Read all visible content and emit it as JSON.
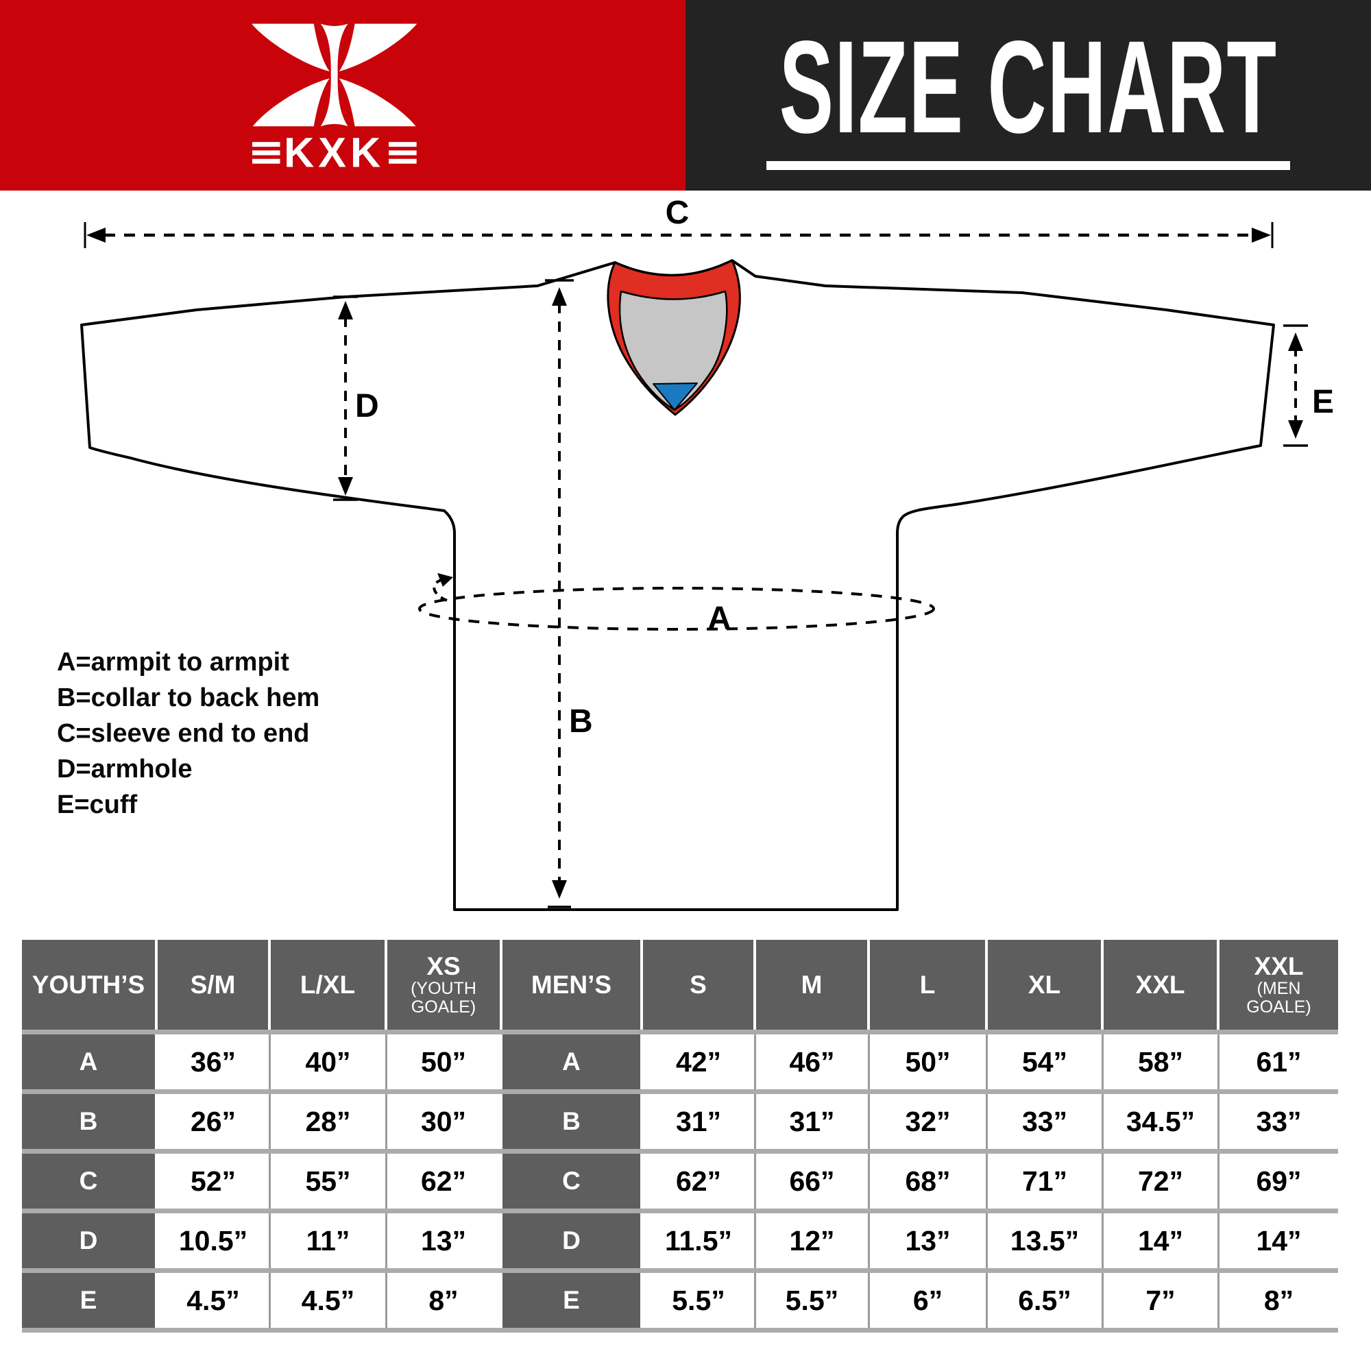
{
  "header": {
    "logo": {
      "brand": "KXK",
      "bars": "≡"
    },
    "title": "SIZE CHART",
    "colors": {
      "banner_red": "#C8040A",
      "banner_dark": "#232323",
      "text": "#ffffff"
    }
  },
  "diagram": {
    "dimension_labels": {
      "A": "A",
      "B": "B",
      "C": "C",
      "D": "D",
      "E": "E"
    },
    "legend": [
      "A=armpit to armpit",
      "B=collar to back hem",
      "C=sleeve end to end",
      "D=armhole",
      "E=cuff"
    ],
    "colors": {
      "outline": "#000000",
      "jersey_fill": "#ffffff",
      "collar_red": "#E02E22",
      "collar_gray": "#C6C6C6",
      "collar_blue": "#1A7AC1"
    }
  },
  "size_table": {
    "row_labels": [
      "A",
      "B",
      "C",
      "D",
      "E"
    ],
    "sections": [
      {
        "header": "YOUTH’S",
        "columns": [
          {
            "label": "S/M"
          },
          {
            "label": "L/XL"
          },
          {
            "label": "XS",
            "sub": "(YOUTH GOALE)"
          }
        ],
        "rows": {
          "A": [
            "36”",
            "40”",
            "50”"
          ],
          "B": [
            "26”",
            "28”",
            "30”"
          ],
          "C": [
            "52”",
            "55”",
            "62”"
          ],
          "D": [
            "10.5”",
            "11”",
            "13”"
          ],
          "E": [
            "4.5”",
            "4.5”",
            "8”"
          ]
        }
      },
      {
        "header": "MEN’S",
        "columns": [
          {
            "label": "S"
          },
          {
            "label": "M"
          },
          {
            "label": "L"
          },
          {
            "label": "XL"
          },
          {
            "label": "XXL"
          },
          {
            "label": "XXL",
            "sub": "(MEN GOALE)"
          }
        ],
        "rows": {
          "A": [
            "42”",
            "46”",
            "50”",
            "54”",
            "58”",
            "61”"
          ],
          "B": [
            "31”",
            "31”",
            "32”",
            "33”",
            "34.5”",
            "33”"
          ],
          "C": [
            "62”",
            "66”",
            "68”",
            "71”",
            "72”",
            "69”"
          ],
          "D": [
            "11.5”",
            "12”",
            "13”",
            "13.5”",
            "14”",
            "14”"
          ],
          "E": [
            "5.5”",
            "5.5”",
            "6”",
            "6.5”",
            "7”",
            "8”"
          ]
        }
      }
    ],
    "colors": {
      "label_bg": "#5E5E5E",
      "divider": "#ABABAB",
      "cell_line": "#9B9B9B",
      "cell_bg": "#ffffff",
      "label_text": "#ffffff",
      "value_text": "#000000"
    }
  }
}
